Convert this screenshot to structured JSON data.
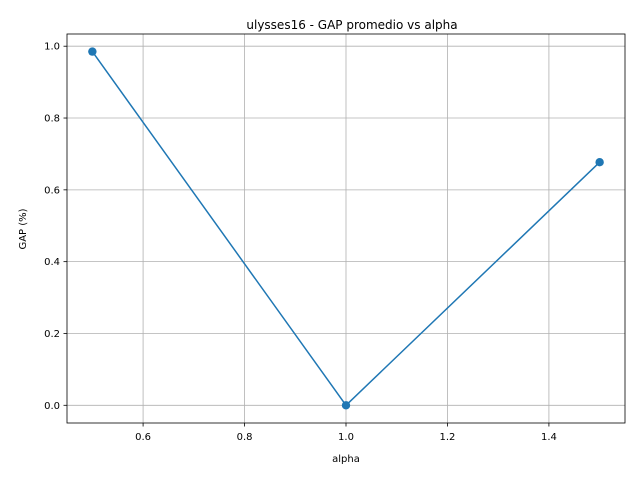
{
  "chart_data": {
    "type": "line",
    "title": "ulysses16 - GAP promedio vs alpha",
    "xlabel": "alpha",
    "ylabel": "GAP (%)",
    "x": [
      0.5,
      1.0,
      1.5
    ],
    "series": [
      {
        "values": [
          0.985,
          0.0,
          0.677
        ],
        "color": "#1f77b4",
        "marker": "circle"
      }
    ],
    "xlim": [
      0.45,
      1.55
    ],
    "ylim": [
      -0.0493,
      1.034
    ],
    "xticks": [
      0.6,
      0.8,
      1.0,
      1.2,
      1.4
    ],
    "yticks": [
      0.0,
      0.2,
      0.4,
      0.6,
      0.8,
      1.0
    ],
    "xtick_labels": [
      "0.6",
      "0.8",
      "1.0",
      "1.2",
      "1.4"
    ],
    "ytick_labels": [
      "0.0",
      "0.2",
      "0.4",
      "0.6",
      "0.8",
      "1.0"
    ],
    "grid": true,
    "grid_color": "#b0b0b0"
  }
}
